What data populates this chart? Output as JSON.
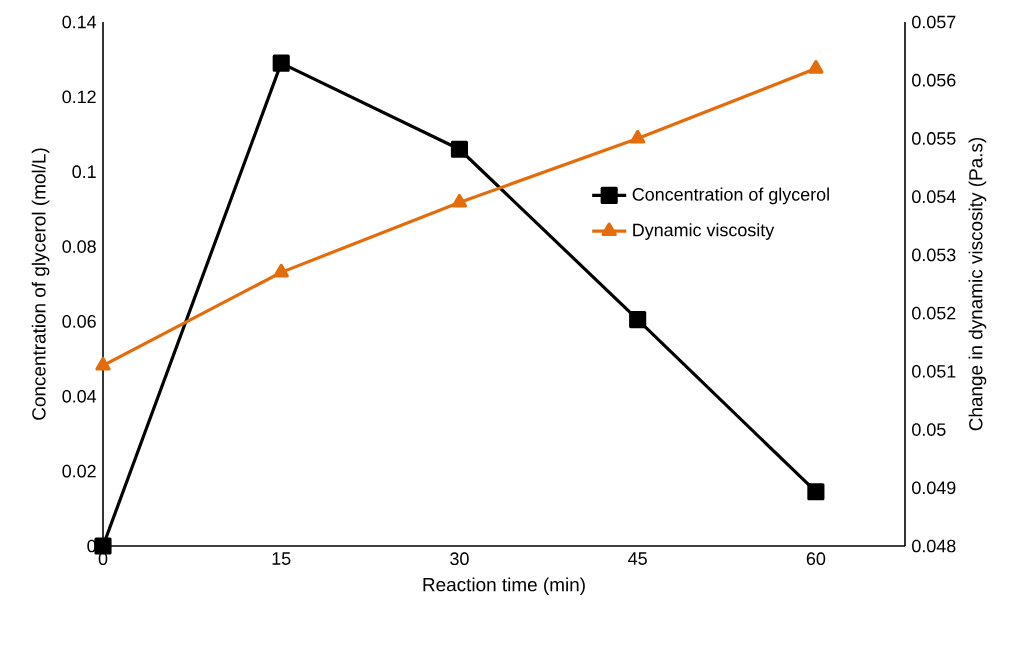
{
  "chart_data": {
    "type": "line",
    "xlabel": "Reaction time (min)",
    "ylabel": "Concentration of glycerol (mol/L)",
    "y2label": "Change in dynamic viscosity (Pa.s)",
    "x": [
      0,
      15,
      30,
      45,
      60
    ],
    "xlim": [
      0,
      67.5
    ],
    "xticks": [
      0,
      15,
      30,
      45,
      60
    ],
    "ylim": [
      0,
      0.14
    ],
    "yticks": [
      0,
      0.02,
      0.04,
      0.06,
      0.08,
      0.1,
      0.12,
      0.14
    ],
    "y2lim": [
      0.048,
      0.057
    ],
    "y2ticks": [
      0.048,
      0.049,
      0.05,
      0.051,
      0.052,
      0.053,
      0.054,
      0.055,
      0.056,
      0.057
    ],
    "legend": "right",
    "series": [
      {
        "name": "Concentration of glycerol",
        "color": "#000000",
        "marker": "square",
        "values": [
          0,
          0.129,
          0.106,
          0.0605,
          0.0145
        ]
      },
      {
        "name": "Dynamic viscosity",
        "color": "#e46c0a",
        "marker": "triangle",
        "axis": "y2",
        "values": [
          0.0511,
          0.0527,
          0.0539,
          0.055,
          0.0562
        ]
      }
    ]
  }
}
